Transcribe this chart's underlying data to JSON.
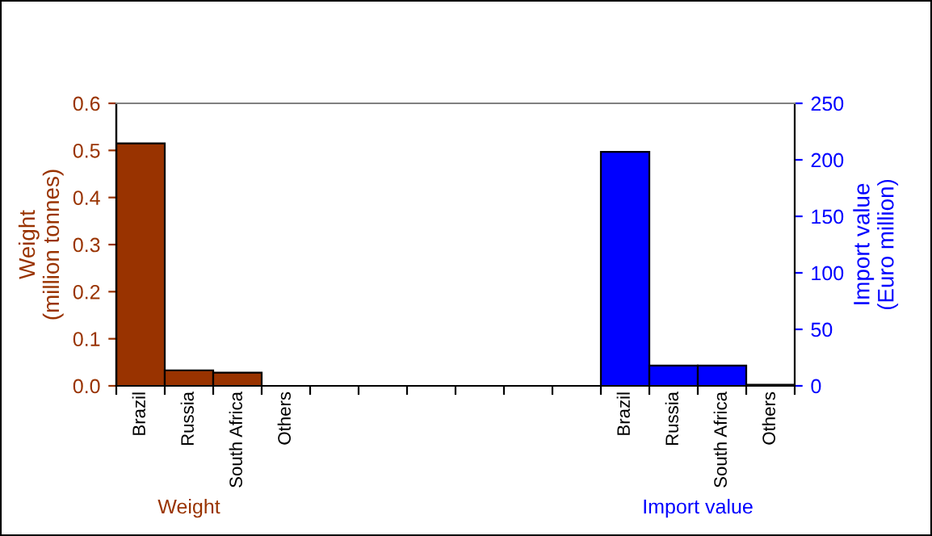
{
  "chart_data": {
    "type": "bar",
    "categories": [
      "Brazil",
      "Russia",
      "South Africa",
      "Others",
      null,
      null,
      null,
      null,
      null,
      null,
      "Brazil",
      "Russia",
      "South Africa",
      "Others"
    ],
    "series": [
      {
        "color": "#993300",
        "values": [
          0.515,
          0.033,
          0.028,
          null,
          null,
          null,
          null,
          null,
          null,
          null,
          null,
          null,
          null,
          null
        ]
      },
      {
        "color": "#0000ff",
        "axis": "y2",
        "values": [
          null,
          null,
          null,
          null,
          null,
          null,
          null,
          null,
          null,
          null,
          207,
          18,
          18,
          1
        ]
      }
    ],
    "ylabel": "Weight\n(million tonnes)",
    "y2label": "Import value\n(Euro million)",
    "ylim": [
      0,
      0.6
    ],
    "yticks": [
      {
        "value": 0,
        "label": "0.0"
      },
      0.1,
      0.2,
      0.3,
      0.4,
      0.5,
      0.6
    ],
    "y2lim": [
      0,
      250
    ],
    "y2ticks": [
      0,
      50,
      100,
      150,
      200,
      250
    ],
    "annotations": [
      "Weight",
      "Import value"
    ],
    "grid": false,
    "legend": false
  }
}
